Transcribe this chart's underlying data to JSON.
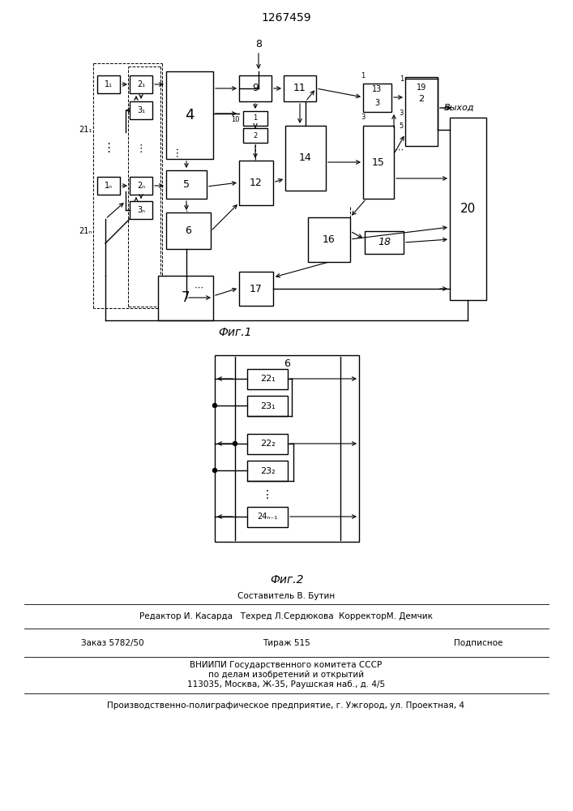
{
  "title": "1267459",
  "fig1_caption": "Фиг.1",
  "fig2_caption": "Фиг.2",
  "footer1": "Составитель В. Бутин",
  "footer2": "Редактор И. Касарда   Техред Л.Сердюкова  КорректорМ. Демчик",
  "footer3a": "Заказ 5782/50",
  "footer3b": "Тираж 515",
  "footer3c": "Подписное",
  "footer4": "ВНИИПИ Государственного комитета СССР",
  "footer5": "по делам изобретений и открытий",
  "footer6": "113035, Москва, Ж-35, Раушская наб., д. 4/5",
  "footer7": "Производственно-полиграфическое предприятие, г. Ужгород, ул. Проектная, 4",
  "vykhod": "Выход",
  "bg_color": "#ffffff"
}
